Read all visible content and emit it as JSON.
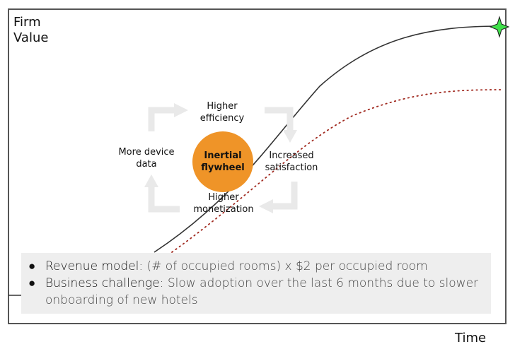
{
  "axes": {
    "y_label": "Firm\nValue",
    "x_label": "Time"
  },
  "flywheel": {
    "center": "Inertial flywheel",
    "top": "Higher efficiency",
    "right": "Increased satisfaction",
    "bottom": "Higher monetization",
    "left": "More device data"
  },
  "colors": {
    "solid_curve": "#333333",
    "dotted_curve": "#a0281e",
    "flywheel_fill": "#ef9428",
    "arrow_gray": "#e9e9e9",
    "star": "#3fe04a",
    "bullet_box": "#eeeeee"
  },
  "icons": {
    "endpoint": "green-star-icon",
    "cycle_arrows": "curved-arrow-icon"
  },
  "bullets": [
    {
      "title": "Revenue model",
      "text": ": (# of occupied rooms) x $2 per occupied room"
    },
    {
      "title": "Business challenge",
      "text": ": Slow adoption over the last 6 months due to slower onboarding of new hotels"
    }
  ]
}
